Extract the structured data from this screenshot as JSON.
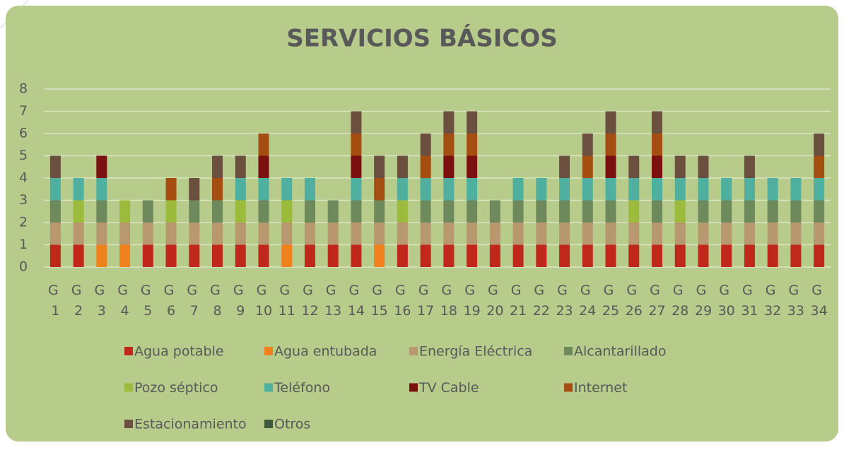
{
  "chart_data": {
    "type": "stacked_bar",
    "title": "SERVICIOS  BÁSICOS",
    "categories": [
      "G 1",
      "G 2",
      "G 3",
      "G 4",
      "G 5",
      "G 6",
      "G 7",
      "G 8",
      "G 9",
      "G 10",
      "G 11",
      "G 12",
      "G 13",
      "G 14",
      "G 15",
      "G 16",
      "G 17",
      "G 18",
      "G 19",
      "G 20",
      "G 21",
      "G 22",
      "G 23",
      "G 24",
      "G 25",
      "G 26",
      "G 27",
      "G 28",
      "G 29",
      "G 30",
      "G 31",
      "G 32",
      "G 33",
      "G 34"
    ],
    "series": [
      {
        "name": "Agua potable",
        "color": "#c0281b",
        "values": [
          1,
          1,
          0,
          0,
          1,
          1,
          1,
          1,
          1,
          1,
          0,
          1,
          1,
          1,
          0,
          1,
          1,
          1,
          1,
          1,
          1,
          1,
          1,
          1,
          1,
          1,
          1,
          1,
          1,
          1,
          1,
          1,
          1,
          1
        ]
      },
      {
        "name": "Agua entubada",
        "color": "#f0821e",
        "values": [
          0,
          0,
          1,
          1,
          0,
          0,
          0,
          0,
          0,
          0,
          1,
          0,
          0,
          0,
          1,
          0,
          0,
          0,
          0,
          0,
          0,
          0,
          0,
          0,
          0,
          0,
          0,
          0,
          0,
          0,
          0,
          0,
          0,
          0
        ]
      },
      {
        "name": "Energía Eléctrica",
        "color": "#b8986e",
        "values": [
          1,
          1,
          1,
          1,
          1,
          1,
          1,
          1,
          1,
          1,
          1,
          1,
          1,
          1,
          1,
          1,
          1,
          1,
          1,
          1,
          1,
          1,
          1,
          1,
          1,
          1,
          1,
          1,
          1,
          1,
          1,
          1,
          1,
          1
        ]
      },
      {
        "name": "Alcantarillado",
        "color": "#6e8a5c",
        "values": [
          1,
          0,
          1,
          0,
          1,
          0,
          1,
          1,
          0,
          1,
          0,
          1,
          1,
          1,
          1,
          0,
          1,
          1,
          1,
          1,
          1,
          1,
          1,
          1,
          1,
          0,
          1,
          0,
          1,
          1,
          1,
          1,
          1,
          1
        ]
      },
      {
        "name": "Pozo séptico",
        "color": "#9cbb3c",
        "values": [
          0,
          1,
          0,
          1,
          0,
          1,
          0,
          0,
          1,
          0,
          1,
          0,
          0,
          0,
          0,
          1,
          0,
          0,
          0,
          0,
          0,
          0,
          0,
          0,
          0,
          1,
          0,
          1,
          0,
          0,
          0,
          0,
          0,
          0
        ]
      },
      {
        "name": "Teléfono",
        "color": "#4fb0a0",
        "values": [
          1,
          1,
          1,
          0,
          0,
          0,
          0,
          0,
          1,
          1,
          1,
          1,
          0,
          1,
          0,
          1,
          1,
          1,
          1,
          0,
          1,
          1,
          1,
          1,
          1,
          1,
          1,
          1,
          1,
          1,
          1,
          1,
          1,
          1
        ]
      },
      {
        "name": "TV Cable",
        "color": "#7a1010",
        "values": [
          0,
          0,
          1,
          0,
          0,
          0,
          0,
          0,
          0,
          1,
          0,
          0,
          0,
          1,
          0,
          0,
          0,
          1,
          1,
          0,
          0,
          0,
          0,
          0,
          1,
          0,
          1,
          0,
          0,
          0,
          0,
          0,
          0,
          0
        ]
      },
      {
        "name": "Internet",
        "color": "#a44e12",
        "values": [
          0,
          0,
          0,
          0,
          0,
          1,
          0,
          1,
          0,
          1,
          0,
          0,
          0,
          1,
          1,
          0,
          1,
          1,
          1,
          0,
          0,
          0,
          0,
          1,
          1,
          0,
          1,
          0,
          0,
          0,
          0,
          0,
          0,
          1
        ]
      },
      {
        "name": "Estacionamiento",
        "color": "#6b5040",
        "values": [
          1,
          0,
          0,
          0,
          0,
          0,
          1,
          1,
          1,
          0,
          0,
          0,
          0,
          1,
          1,
          1,
          1,
          1,
          1,
          0,
          0,
          0,
          1,
          1,
          1,
          1,
          1,
          1,
          1,
          0,
          1,
          0,
          0,
          1
        ]
      },
      {
        "name": "Otros",
        "color": "#3e5a3a",
        "values": [
          0,
          0,
          0,
          0,
          0,
          0,
          0,
          0,
          0,
          0,
          0,
          0,
          0,
          0,
          0,
          0,
          0,
          0,
          0,
          0,
          0,
          0,
          0,
          0,
          0,
          0,
          0,
          0,
          0,
          0,
          0,
          0,
          0,
          0
        ]
      }
    ],
    "ylim": [
      0,
      8
    ],
    "yticks": [
      0,
      1,
      2,
      3,
      4,
      5,
      6,
      7,
      8
    ],
    "grid": true
  }
}
